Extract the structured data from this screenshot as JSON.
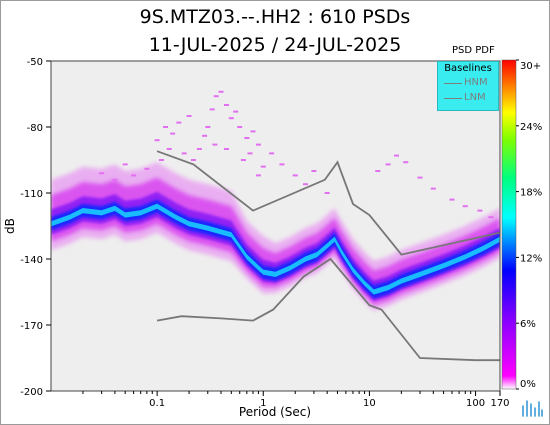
{
  "chart_data": {
    "type": "heatmap",
    "title": "9S.MTZ03.--.HH2 : 610 PSDs",
    "subtitle": "11-JUL-2025 / 24-JUL-2025",
    "xlabel": "Period (Sec)",
    "ylabel": "dB",
    "x_scale": "log",
    "xlim": [
      0.01,
      170
    ],
    "ylim": [
      -200,
      -50
    ],
    "x_ticks": [
      "0.1",
      "1",
      "10",
      "100",
      "170"
    ],
    "y_ticks": [
      "-50",
      "-80",
      "-110",
      "-140",
      "-170",
      "-200"
    ],
    "colorbar": {
      "label": "PSD PDF",
      "ticks": [
        "30+",
        "24%",
        "18%",
        "12%",
        "6%",
        "0%"
      ],
      "colors": [
        "#ff0000",
        "#ff8000",
        "#ffff00",
        "#00ff00",
        "#00ffff",
        "#0000ff",
        "#ff00ff",
        "#ffffff"
      ]
    },
    "legend": {
      "title": "Baselines",
      "entries": [
        "HNM",
        "LNM"
      ]
    },
    "series": [
      {
        "name": "HNM",
        "x": [
          0.1,
          0.22,
          0.8,
          3.8,
          5.0,
          7.0,
          10,
          20,
          170
        ],
        "y": [
          -91,
          -97,
          -118,
          -104,
          -96,
          -115,
          -120,
          -138,
          -128
        ]
      },
      {
        "name": "LNM",
        "x": [
          0.1,
          0.17,
          0.4,
          0.8,
          1.24,
          2.4,
          4.3,
          10,
          13,
          30,
          100,
          170
        ],
        "y": [
          -168,
          -166,
          -167,
          -168,
          -163,
          -148,
          -140,
          -161,
          -163,
          -185,
          -186,
          -186
        ]
      },
      {
        "name": "mode",
        "x": [
          0.01,
          0.015,
          0.02,
          0.03,
          0.04,
          0.05,
          0.07,
          0.1,
          0.15,
          0.2,
          0.3,
          0.5,
          0.7,
          0.9,
          1.0,
          1.3,
          1.8,
          2.5,
          3.2,
          4.0,
          4.7,
          5.5,
          7,
          9,
          11,
          15,
          20,
          30,
          50,
          80,
          120,
          170
        ],
        "y": [
          -124,
          -121,
          -118,
          -119,
          -117,
          -120,
          -119,
          -116,
          -121,
          -124,
          -126,
          -129,
          -139,
          -144,
          -146,
          -147,
          -144,
          -140,
          -138,
          -134,
          -131,
          -137,
          -145,
          -151,
          -155,
          -153,
          -150,
          -147,
          -143,
          -139,
          -135,
          -131
        ]
      }
    ]
  }
}
